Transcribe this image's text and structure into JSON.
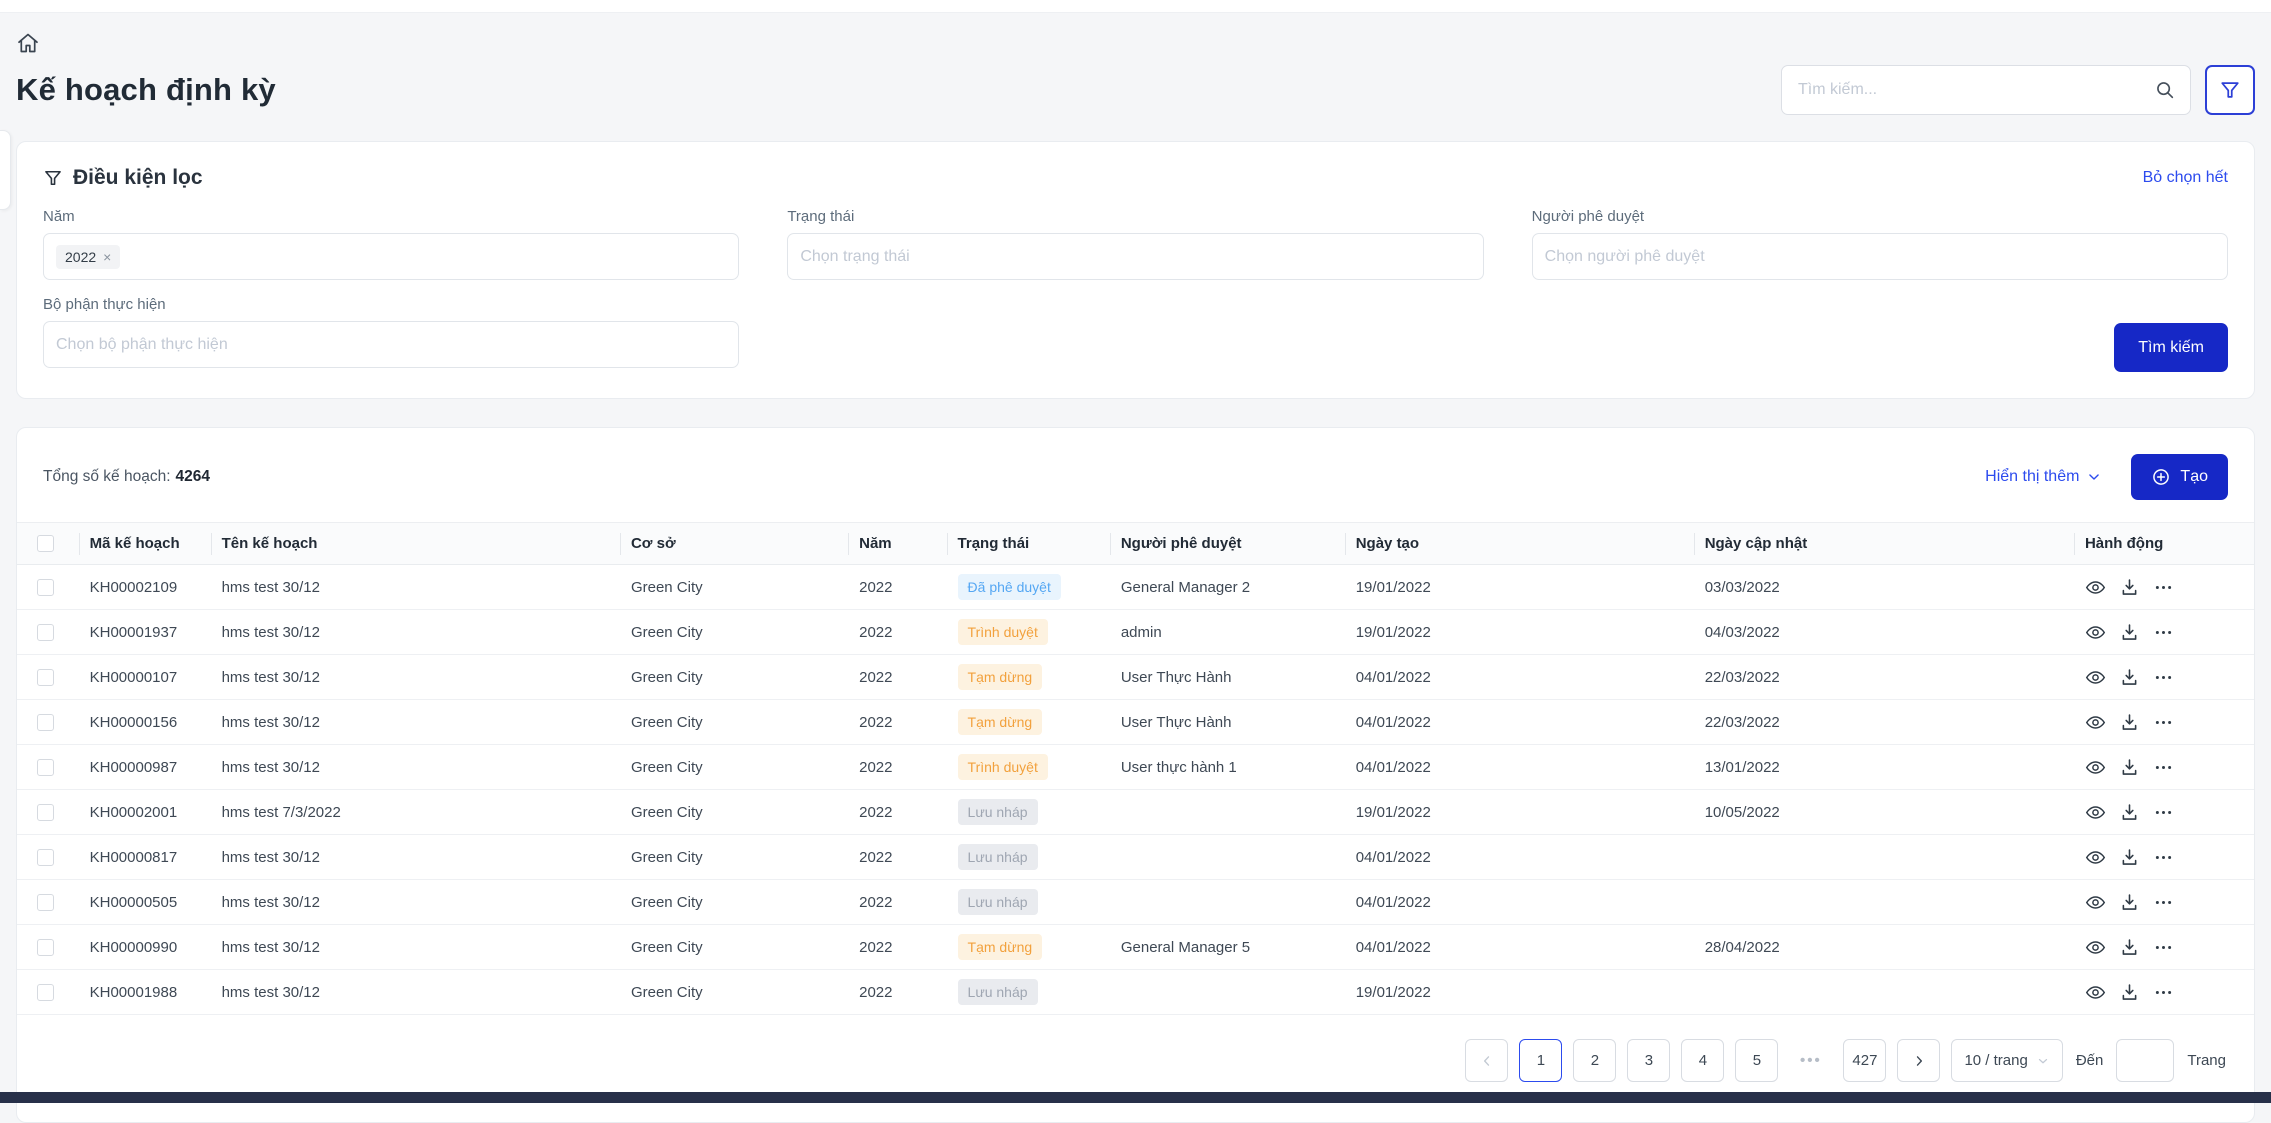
{
  "header": {
    "title": "Kế hoạch định kỳ",
    "search_placeholder": "Tìm kiếm..."
  },
  "filter": {
    "title": "Điều kiện lọc",
    "clear_all_label": "Bỏ chọn hết",
    "year_label": "Năm",
    "year_tag": "2022",
    "year_tag_remove": "×",
    "status_label": "Trạng thái",
    "status_placeholder": "Chọn trạng thái",
    "approver_label": "Người phê duyệt",
    "approver_placeholder": "Chọn người phê duyệt",
    "department_label": "Bộ phận thực hiện",
    "department_placeholder": "Chọn bộ phận thực hiện",
    "search_button_label": "Tìm kiếm"
  },
  "toolbar": {
    "total_label": "Tổng số kế hoạch:",
    "total_value": "4264",
    "show_more_label": "Hiển thị thêm",
    "create_button_label": "Tạo"
  },
  "table": {
    "columns": [
      {
        "key": "code",
        "label": "Mã kế hoạch"
      },
      {
        "key": "name",
        "label": "Tên kế hoạch"
      },
      {
        "key": "facility",
        "label": "Cơ sở"
      },
      {
        "key": "year",
        "label": "Năm"
      },
      {
        "key": "status",
        "label": "Trạng thái"
      },
      {
        "key": "approver",
        "label": "Người phê duyệt"
      },
      {
        "key": "created",
        "label": "Ngày tạo"
      },
      {
        "key": "updated",
        "label": "Ngày cập nhật"
      },
      {
        "key": "actions",
        "label": "Hành động"
      }
    ],
    "rows": [
      {
        "code": "KH00002109",
        "name": "hms test 30/12",
        "facility": "Green City",
        "year": "2022",
        "status": "Đã phê duyệt",
        "status_type": "approved",
        "approver": "General Manager 2",
        "created": "19/01/2022",
        "updated": "03/03/2022"
      },
      {
        "code": "KH00001937",
        "name": "hms test 30/12",
        "facility": "Green City",
        "year": "2022",
        "status": "Trình duyệt",
        "status_type": "pending",
        "approver": "admin",
        "created": "19/01/2022",
        "updated": "04/03/2022"
      },
      {
        "code": "KH00000107",
        "name": "hms test 30/12",
        "facility": "Green City",
        "year": "2022",
        "status": "Tạm dừng",
        "status_type": "pending",
        "approver": "User Thực Hành",
        "created": "04/01/2022",
        "updated": "22/03/2022"
      },
      {
        "code": "KH00000156",
        "name": "hms test 30/12",
        "facility": "Green City",
        "year": "2022",
        "status": "Tạm dừng",
        "status_type": "pending",
        "approver": "User Thực Hành",
        "created": "04/01/2022",
        "updated": "22/03/2022"
      },
      {
        "code": "KH00000987",
        "name": "hms test 30/12",
        "facility": "Green City",
        "year": "2022",
        "status": "Trình duyệt",
        "status_type": "pending",
        "approver": "User thực hành 1",
        "created": "04/01/2022",
        "updated": "13/01/2022"
      },
      {
        "code": "KH00002001",
        "name": "hms test 7/3/2022",
        "facility": "Green City",
        "year": "2022",
        "status": "Lưu nháp",
        "status_type": "draft",
        "approver": "",
        "created": "19/01/2022",
        "updated": "10/05/2022"
      },
      {
        "code": "KH00000817",
        "name": "hms test 30/12",
        "facility": "Green City",
        "year": "2022",
        "status": "Lưu nháp",
        "status_type": "draft",
        "approver": "",
        "created": "04/01/2022",
        "updated": ""
      },
      {
        "code": "KH00000505",
        "name": "hms test 30/12",
        "facility": "Green City",
        "year": "2022",
        "status": "Lưu nháp",
        "status_type": "draft",
        "approver": "",
        "created": "04/01/2022",
        "updated": ""
      },
      {
        "code": "KH00000990",
        "name": "hms test 30/12",
        "facility": "Green City",
        "year": "2022",
        "status": "Tạm dừng",
        "status_type": "pending",
        "approver": "General Manager 5",
        "created": "04/01/2022",
        "updated": "28/04/2022"
      },
      {
        "code": "KH00001988",
        "name": "hms test 30/12",
        "facility": "Green City",
        "year": "2022",
        "status": "Lưu nháp",
        "status_type": "draft",
        "approver": "",
        "created": "19/01/2022",
        "updated": ""
      }
    ]
  },
  "pagination": {
    "items": [
      {
        "type": "prev",
        "disabled": true
      },
      {
        "type": "page",
        "label": "1",
        "active": true
      },
      {
        "type": "page",
        "label": "2"
      },
      {
        "type": "page",
        "label": "3"
      },
      {
        "type": "page",
        "label": "4"
      },
      {
        "type": "page",
        "label": "5"
      },
      {
        "type": "dots",
        "label": "•••"
      },
      {
        "type": "page",
        "label": "427"
      },
      {
        "type": "next",
        "disabled": false
      }
    ],
    "page_size_label": "10 / trang",
    "goto_label": "Đến",
    "page_label": "Trang"
  },
  "icons": [
    "home-icon",
    "search-icon",
    "filter-icon",
    "funnel-icon",
    "chevron-down-icon",
    "plus-circle-icon",
    "eye-icon",
    "download-icon",
    "ellipsis-icon",
    "close-icon",
    "chevron-left-icon",
    "chevron-right-icon"
  ],
  "colors": {
    "primary_button": "#1628c6",
    "link_blue": "#2c4bee",
    "status_approved_text": "#55a7f3",
    "status_approved_bg": "#e9f4fd",
    "status_pending_text": "#f2a13d",
    "status_pending_bg": "#fdf2e0",
    "status_draft_text": "#9fa6b2",
    "status_draft_bg": "#e9ebef",
    "page_background": "#f5f6f8",
    "bottom_bar": "#273049"
  }
}
